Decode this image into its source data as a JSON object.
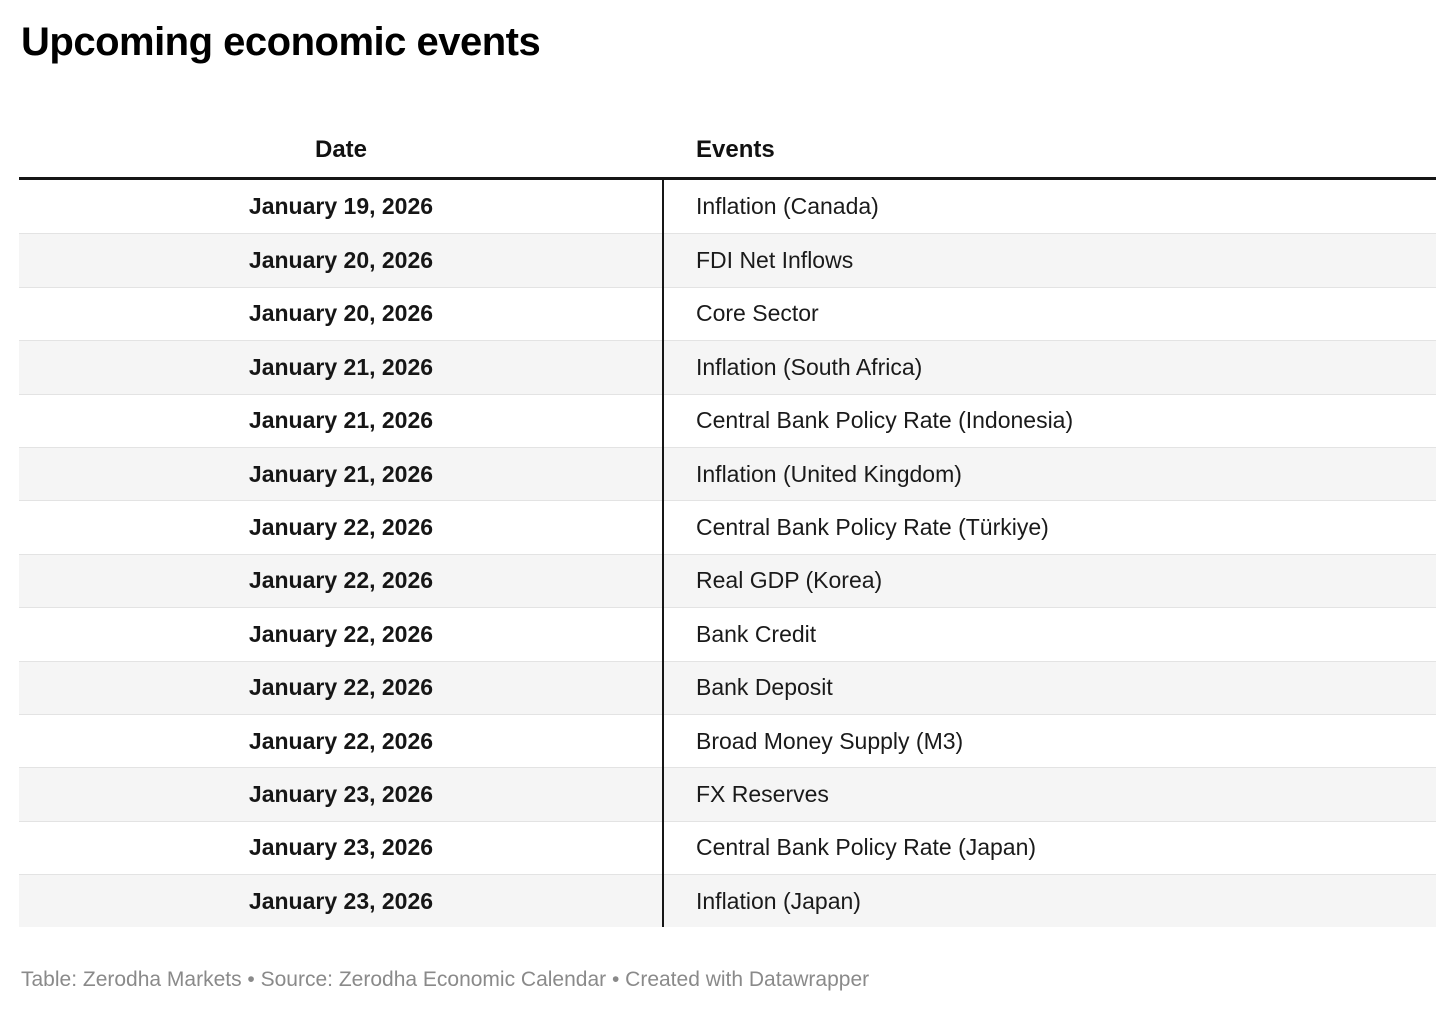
{
  "title": "Upcoming economic events",
  "table": {
    "columns": [
      "Date",
      "Events"
    ],
    "rows": [
      {
        "date": "January 19, 2026",
        "event": "Inflation (Canada)"
      },
      {
        "date": "January 20, 2026",
        "event": "FDI Net Inflows"
      },
      {
        "date": "January 20, 2026",
        "event": "Core Sector"
      },
      {
        "date": "January 21, 2026",
        "event": "Inflation (South Africa)"
      },
      {
        "date": "January 21, 2026",
        "event": "Central Bank Policy Rate (Indonesia)"
      },
      {
        "date": "January 21, 2026",
        "event": "Inflation (United Kingdom)"
      },
      {
        "date": "January 22, 2026",
        "event": "Central Bank Policy Rate (Türkiye)"
      },
      {
        "date": "January 22, 2026",
        "event": "Real GDP (Korea)"
      },
      {
        "date": "January 22, 2026",
        "event": "Bank Credit"
      },
      {
        "date": "January 22, 2026",
        "event": "Bank Deposit"
      },
      {
        "date": "January 22, 2026",
        "event": "Broad Money Supply (M3)"
      },
      {
        "date": "January 23, 2026",
        "event": "FX Reserves"
      },
      {
        "date": "January 23, 2026",
        "event": "Central Bank Policy Rate (Japan)"
      },
      {
        "date": "January 23, 2026",
        "event": "Inflation (Japan)"
      }
    ]
  },
  "footer": {
    "text": "Table: Zerodha Markets • Source: Zerodha Economic Calendar • Created with Datawrapper"
  },
  "colors": {
    "stripe_row": "#f5f5f5",
    "row_separator": "#e3e3e3",
    "table_border": "#161616",
    "cell_text": "#1a1a1a",
    "footer_text": "#8a8a8a"
  },
  "chart_data": {
    "type": "table",
    "title": "Upcoming economic events",
    "columns": [
      "Date",
      "Events"
    ],
    "rows": [
      [
        "January 19, 2026",
        "Inflation (Canada)"
      ],
      [
        "January 20, 2026",
        "FDI Net Inflows"
      ],
      [
        "January 20, 2026",
        "Core Sector"
      ],
      [
        "January 21, 2026",
        "Inflation (South Africa)"
      ],
      [
        "January 21, 2026",
        "Central Bank Policy Rate (Indonesia)"
      ],
      [
        "January 21, 2026",
        "Inflation (United Kingdom)"
      ],
      [
        "January 22, 2026",
        "Central Bank Policy Rate (Türkiye)"
      ],
      [
        "January 22, 2026",
        "Real GDP (Korea)"
      ],
      [
        "January 22, 2026",
        "Bank Credit"
      ],
      [
        "January 22, 2026",
        "Bank Deposit"
      ],
      [
        "January 22, 2026",
        "Broad Money Supply (M3)"
      ],
      [
        "January 23, 2026",
        "FX Reserves"
      ],
      [
        "January 23, 2026",
        "Central Bank Policy Rate (Japan)"
      ],
      [
        "January 23, 2026",
        "Inflation (Japan)"
      ]
    ],
    "layout": {
      "date_column_alignment": "center",
      "events_column_alignment": "left",
      "striped_rows": true,
      "footer": "Table: Zerodha Markets • Source: Zerodha Economic Calendar • Created with Datawrapper"
    }
  }
}
